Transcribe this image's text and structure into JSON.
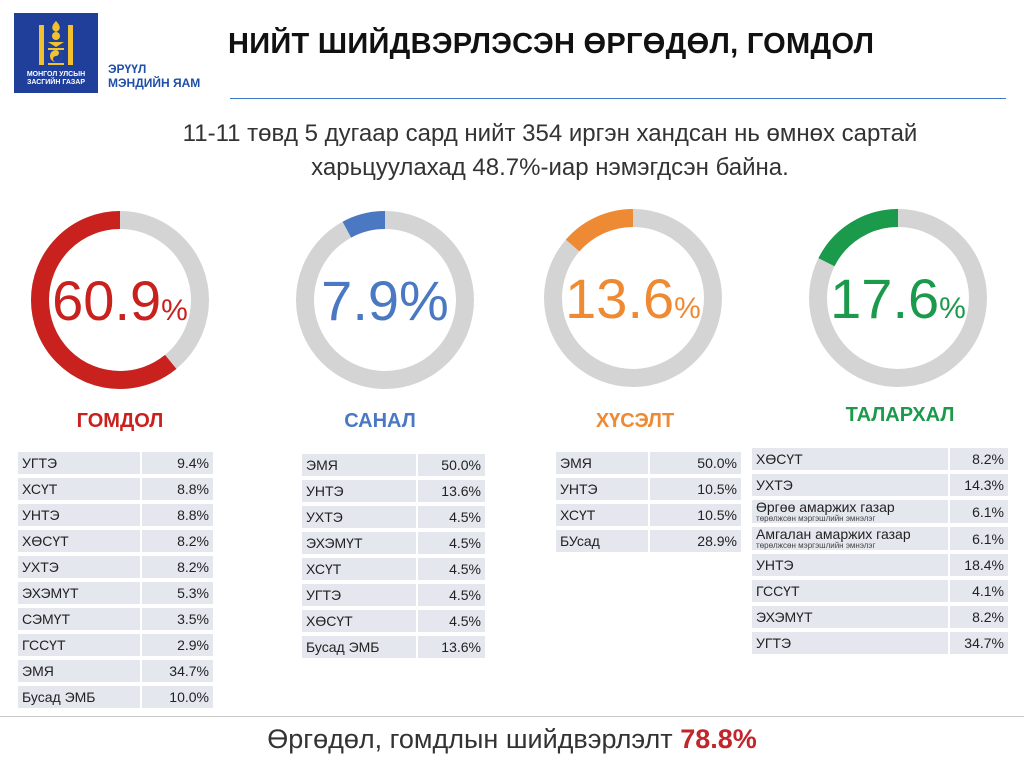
{
  "header": {
    "logo_text": "МОНГОЛ УЛСЫН ЗАСГИЙН ГАЗАР",
    "ministry_line1": "ЭРҮҮЛ",
    "ministry_line2": "МЭНДИЙН ЯАМ",
    "title": "НИЙТ ШИЙДВЭРЛЭСЭН ӨРГӨДӨЛ, ГОМДОЛ"
  },
  "subtitle": {
    "line1": "11-11 төвд 5 дугаар сард нийт 354 иргэн хандсан нь өмнөх сартай",
    "line2": "харьцуулахад 48.7%-иар нэмэгдсэн байна."
  },
  "chart_data": {
    "type": "donut",
    "series": [
      {
        "name": "ГОМДОЛ",
        "percent": 60.9,
        "value_text": "60.9",
        "unit": "%",
        "color": "#c8211e",
        "breakdown": [
          {
            "label": "УГТЭ",
            "value": "9.4%"
          },
          {
            "label": "ХСҮТ",
            "value": "8.8%"
          },
          {
            "label": "УНТЭ",
            "value": "8.8%"
          },
          {
            "label": "ХӨСҮТ",
            "value": "8.2%"
          },
          {
            "label": "УХТЭ",
            "value": "8.2%"
          },
          {
            "label": "ЭХЭМҮТ",
            "value": "5.3%"
          },
          {
            "label": "СЭМҮТ",
            "value": "3.5%"
          },
          {
            "label": "ГССҮТ",
            "value": "2.9%"
          },
          {
            "label": "ЭМЯ",
            "value": "34.7%"
          },
          {
            "label": "Бусад ЭМБ",
            "value": "10.0%"
          }
        ]
      },
      {
        "name": "САНАЛ",
        "percent": 7.9,
        "value_text": "7.9",
        "unit": "%",
        "color": "#4a78c2",
        "breakdown": [
          {
            "label": "ЭМЯ",
            "value": "50.0%"
          },
          {
            "label": "УНТЭ",
            "value": "13.6%"
          },
          {
            "label": "УХТЭ",
            "value": "4.5%"
          },
          {
            "label": "ЭХЭМҮТ",
            "value": "4.5%"
          },
          {
            "label": "ХСҮТ",
            "value": "4.5%"
          },
          {
            "label": "УГТЭ",
            "value": "4.5%"
          },
          {
            "label": "ХӨСҮТ",
            "value": "4.5%"
          },
          {
            "label": "Бусад ЭМБ",
            "value": "13.6%"
          }
        ]
      },
      {
        "name": "ХҮСЭЛТ",
        "percent": 13.6,
        "value_text": "13.6",
        "unit": "%",
        "color": "#ef8a34",
        "breakdown": [
          {
            "label": "ЭМЯ",
            "value": "50.0%"
          },
          {
            "label": "УНТЭ",
            "value": "10.5%"
          },
          {
            "label": "ХСҮТ",
            "value": "10.5%"
          },
          {
            "label": "БУсад",
            "value": "28.9%"
          }
        ]
      },
      {
        "name": "ТАЛАРХАЛ",
        "percent": 17.6,
        "value_text": "17.6",
        "unit": "%",
        "color": "#1c9a4c",
        "breakdown": [
          {
            "label": "ХӨСҮТ",
            "value": "8.2%"
          },
          {
            "label": "УХТЭ",
            "value": "14.3%"
          },
          {
            "label": "Өргөө амаржих газар",
            "sub": "төрөлжсөн мэргэшлийн эмнэлэг",
            "value": "6.1%"
          },
          {
            "label": "Амгалан амаржих газар",
            "sub": "төрөлжсөн мэргэшлийн эмнэлэг",
            "value": "6.1%"
          },
          {
            "label": "УНТЭ",
            "value": "18.4%"
          },
          {
            "label": "ГССҮТ",
            "value": "4.1%"
          },
          {
            "label": "ЭХЭМҮТ",
            "value": "8.2%"
          },
          {
            "label": "УГТЭ",
            "value": "34.7%"
          }
        ]
      }
    ],
    "track_color": "#d4d4d4"
  },
  "footer": {
    "text": "Өргөдөл, гомдлын шийдвэрлэлт",
    "highlight": "78.8%"
  }
}
